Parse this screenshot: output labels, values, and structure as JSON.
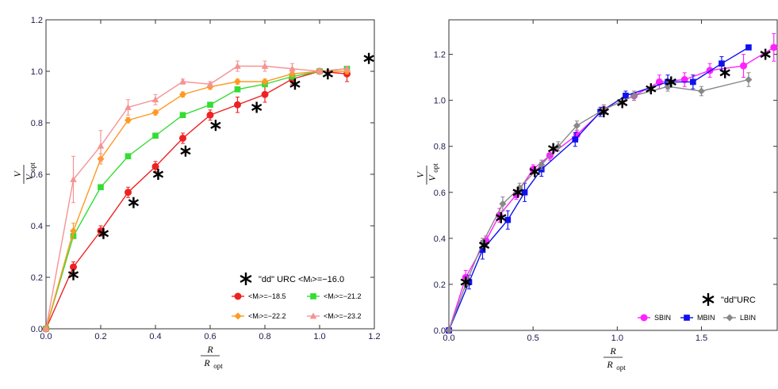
{
  "chart_data": [
    {
      "type": "line",
      "xlabel": "R",
      "xlabel_denominator": "R",
      "xlabel_denominator_sub": "opt",
      "ylabel": "V",
      "ylabel_denominator": "V",
      "ylabel_denominator_sub": "opt",
      "xlim": [
        0,
        1.2
      ],
      "ylim": [
        0,
        1.2
      ],
      "xticks": [
        "0.0",
        "0.2",
        "0.4",
        "0.6",
        "0.8",
        "1.0",
        "1.2"
      ],
      "yticks": [
        "0.0",
        "0.2",
        "0.4",
        "0.6",
        "0.8",
        "1.0",
        "1.2"
      ],
      "legend_position": "bottom-right",
      "reference": {
        "label": "\"dd\" URC <Mₗ>=−16.0",
        "marker": "star",
        "color": "#000000",
        "x": [
          0.1,
          0.21,
          0.32,
          0.41,
          0.51,
          0.62,
          0.77,
          0.91,
          1.03,
          1.18
        ],
        "y": [
          0.21,
          0.37,
          0.49,
          0.6,
          0.69,
          0.79,
          0.86,
          0.95,
          0.99,
          1.05
        ]
      },
      "series": [
        {
          "name": "<Mₗ>=−18.5",
          "color": "#ee2222",
          "marker": "circle",
          "x": [
            0.0,
            0.1,
            0.2,
            0.3,
            0.4,
            0.5,
            0.6,
            0.7,
            0.8,
            0.9,
            1.0,
            1.1
          ],
          "y": [
            0.0,
            0.24,
            0.38,
            0.53,
            0.63,
            0.74,
            0.83,
            0.87,
            0.91,
            0.97,
            1.0,
            0.99
          ],
          "err": [
            0,
            0.02,
            0.02,
            0.02,
            0.02,
            0.02,
            0.02,
            0.03,
            0.03,
            0.02,
            0.01,
            0.03
          ]
        },
        {
          "name": "<Mₗ>=−21.2",
          "color": "#33dd33",
          "marker": "square",
          "x": [
            0.0,
            0.1,
            0.2,
            0.3,
            0.4,
            0.5,
            0.6,
            0.7,
            0.8,
            0.9,
            1.0,
            1.1
          ],
          "y": [
            0.0,
            0.36,
            0.55,
            0.67,
            0.75,
            0.83,
            0.87,
            0.93,
            0.95,
            0.98,
            1.0,
            1.01
          ],
          "err": [
            0,
            0.01,
            0.01,
            0.01,
            0.01,
            0.01,
            0.01,
            0.01,
            0.01,
            0.01,
            0.01,
            0.01
          ]
        },
        {
          "name": "<Mₗ>=−22.2",
          "color": "#ff9922",
          "marker": "diamond",
          "x": [
            0.0,
            0.1,
            0.2,
            0.3,
            0.4,
            0.5,
            0.6,
            0.7,
            0.8,
            0.9,
            1.0,
            1.1
          ],
          "y": [
            0.0,
            0.38,
            0.66,
            0.81,
            0.84,
            0.91,
            0.94,
            0.96,
            0.96,
            0.99,
            1.0,
            1.0
          ],
          "err": [
            0,
            0.03,
            0.02,
            0.01,
            0.01,
            0.01,
            0.01,
            0.01,
            0.01,
            0.01,
            0.01,
            0.01
          ]
        },
        {
          "name": "<Mₗ>=−23.2",
          "color": "#f59393",
          "marker": "triangle",
          "x": [
            0.0,
            0.1,
            0.2,
            0.3,
            0.4,
            0.5,
            0.6,
            0.7,
            0.8,
            0.9,
            1.0,
            1.1
          ],
          "y": [
            0.0,
            0.58,
            0.71,
            0.86,
            0.89,
            0.96,
            0.95,
            1.02,
            1.02,
            1.01,
            1.0,
            1.01
          ],
          "err": [
            0,
            0.09,
            0.06,
            0.03,
            0.02,
            0.01,
            0.01,
            0.02,
            0.02,
            0.02,
            0.01,
            0.01
          ]
        }
      ]
    },
    {
      "type": "line",
      "xlabel": "R",
      "xlabel_denominator": "R",
      "xlabel_denominator_sub": "opt",
      "ylabel": "V",
      "ylabel_denominator": "V",
      "ylabel_denominator_sub": "opt",
      "xlim": [
        0,
        1.95
      ],
      "ylim": [
        0,
        1.35
      ],
      "xticks": [
        "0.0",
        "0.5",
        "1.0",
        "1.5"
      ],
      "yticks": [
        "0.0",
        "0.2",
        "0.4",
        "0.6",
        "0.8",
        "1.0",
        "1.2"
      ],
      "legend_position": "bottom-right",
      "reference": {
        "label": "\"dd\"URC",
        "marker": "star",
        "color": "#000000",
        "x": [
          0.1,
          0.21,
          0.31,
          0.41,
          0.51,
          0.62,
          0.92,
          1.03,
          1.2,
          1.32,
          1.64,
          1.88
        ],
        "y": [
          0.21,
          0.37,
          0.49,
          0.6,
          0.69,
          0.79,
          0.95,
          0.99,
          1.05,
          1.08,
          1.12,
          1.2
        ]
      },
      "series": [
        {
          "name": "SBIN",
          "color": "#ff22ff",
          "marker": "circle",
          "x": [
            0.0,
            0.1,
            0.22,
            0.3,
            0.4,
            0.5,
            0.6,
            0.76,
            0.92,
            1.1,
            1.25,
            1.4,
            1.55,
            1.75,
            1.93
          ],
          "y": [
            0.0,
            0.23,
            0.39,
            0.5,
            0.59,
            0.7,
            0.76,
            0.85,
            0.96,
            1.02,
            1.08,
            1.09,
            1.13,
            1.15,
            1.23
          ],
          "err": [
            0,
            0.03,
            0.02,
            0.03,
            0.02,
            0.02,
            0.02,
            0.02,
            0.02,
            0.02,
            0.03,
            0.03,
            0.03,
            0.05,
            0.06
          ]
        },
        {
          "name": "MBIN",
          "color": "#1111ee",
          "marker": "square",
          "x": [
            0.0,
            0.12,
            0.2,
            0.35,
            0.45,
            0.55,
            0.75,
            0.9,
            1.05,
            1.3,
            1.45,
            1.62,
            1.78
          ],
          "y": [
            0.0,
            0.21,
            0.35,
            0.48,
            0.6,
            0.7,
            0.83,
            0.95,
            1.02,
            1.08,
            1.08,
            1.16,
            1.23
          ],
          "err": [
            0,
            0.03,
            0.04,
            0.04,
            0.04,
            0.03,
            0.03,
            0.02,
            0.02,
            0.03,
            0.03,
            0.03,
            0.01
          ]
        },
        {
          "name": "LBIN",
          "color": "#888888",
          "marker": "diamond",
          "x": [
            0.0,
            0.1,
            0.2,
            0.32,
            0.42,
            0.55,
            0.65,
            0.76,
            0.92,
            1.1,
            1.3,
            1.5,
            1.78
          ],
          "y": [
            0.0,
            0.2,
            0.38,
            0.55,
            0.62,
            0.72,
            0.8,
            0.89,
            0.96,
            1.02,
            1.06,
            1.04,
            1.09
          ],
          "err": [
            0,
            0.02,
            0.02,
            0.03,
            0.02,
            0.02,
            0.02,
            0.02,
            0.02,
            0.02,
            0.02,
            0.02,
            0.03
          ]
        }
      ]
    }
  ]
}
